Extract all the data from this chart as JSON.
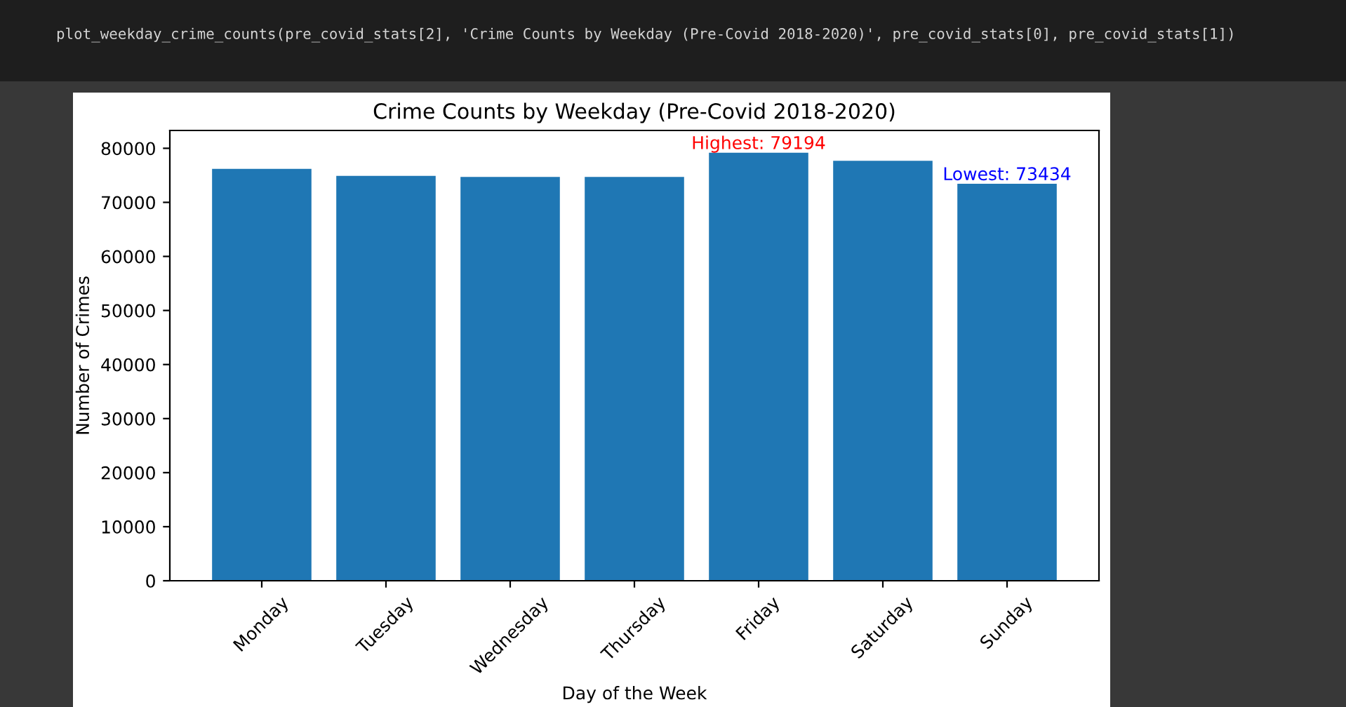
{
  "chart_data": {
    "type": "bar",
    "title": "Crime Counts by Weekday (Pre-Covid 2018-2020)",
    "xlabel": "Day of the Week",
    "ylabel": "Number of Crimes",
    "categories": [
      "Monday",
      "Tuesday",
      "Wednesday",
      "Thursday",
      "Friday",
      "Saturday",
      "Sunday"
    ],
    "values": [
      76200,
      74900,
      74700,
      74700,
      79194,
      77700,
      73434
    ],
    "color": "#1f77b4",
    "ylim": [
      0,
      83300
    ],
    "yticks": [
      0,
      10000,
      20000,
      30000,
      40000,
      50000,
      60000,
      70000,
      80000
    ],
    "grid": false,
    "annotations": [
      "plot_weekday_crime_counts(pre_covid_stats[2], 'Crime Counts by Weekday (Pre-Covid 2018-2020)', pre_covid_stats[0], pre_covid_stats[1])",
      {
        "text": "Highest: 79194",
        "x": "Friday",
        "y": 79194
      },
      {
        "text": "Lowest: 73434",
        "x": "Sunday",
        "y": 73434
      }
    ]
  }
}
